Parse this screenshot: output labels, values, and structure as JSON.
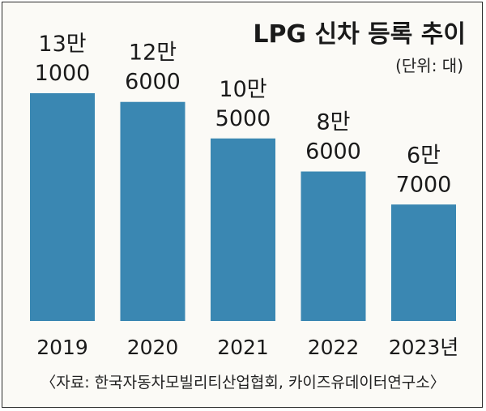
{
  "chart_data": {
    "type": "bar",
    "title": "LPG 신차 등록 추이",
    "unit_label": "(단위: 대)",
    "categories": [
      "2019",
      "2020",
      "2021",
      "2022",
      "2023년"
    ],
    "values": [
      131000,
      126000,
      105000,
      86000,
      67000
    ],
    "value_labels": [
      [
        "13만",
        "1000"
      ],
      [
        "12만",
        "6000"
      ],
      [
        "10만",
        "5000"
      ],
      [
        "8만",
        "6000"
      ],
      [
        "6만",
        "7000"
      ]
    ],
    "ylim": [
      0,
      131000
    ],
    "bar_color": "#3a87b2",
    "grid": false,
    "legend": "none",
    "source": "〈자료: 한국자동차모빌리티산업협회, 카이즈유데이터연구소〉"
  }
}
